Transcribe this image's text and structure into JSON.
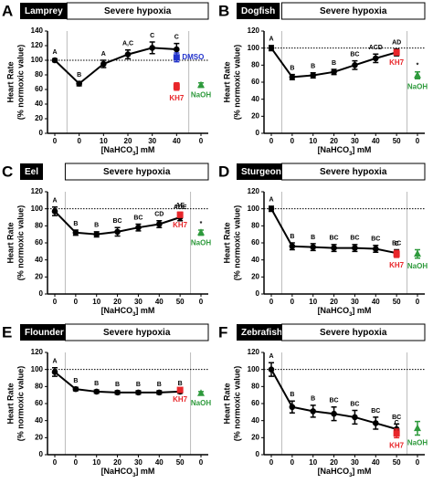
{
  "chart_data": [
    {
      "type": "line",
      "panel": "A",
      "title": "Lamprey",
      "header": "Severe hypoxia",
      "y_label": [
        "Heart Rate",
        "(% normoxic value)"
      ],
      "x_label": [
        "[NaHCO",
        "3",
        "] mM"
      ],
      "categories": [
        "0",
        "0",
        "10",
        "20",
        "30",
        "40",
        "0"
      ],
      "ylim": [
        0,
        140
      ],
      "yticks": [
        0,
        20,
        40,
        60,
        80,
        100,
        120,
        140
      ],
      "ref_line": 100,
      "series": [
        {
          "name": null,
          "color": "#000000",
          "marker": "circle",
          "values": [
            100,
            68,
            95,
            108,
            117,
            115,
            null
          ],
          "errors": [
            2,
            3,
            5,
            6,
            8,
            8,
            null
          ],
          "letters": [
            "A",
            "B",
            "A",
            "A,C",
            "C",
            "C",
            null
          ]
        },
        {
          "name": "KH7",
          "color": "#e8262a",
          "marker": "square",
          "values": [
            null,
            null,
            null,
            null,
            null,
            64,
            null
          ],
          "errors": [
            null,
            null,
            null,
            null,
            null,
            5,
            null
          ]
        },
        {
          "name": "NaOH",
          "color": "#2e9a3c",
          "marker": "triangle",
          "values": [
            null,
            null,
            null,
            null,
            null,
            null,
            66
          ],
          "errors": [
            null,
            null,
            null,
            null,
            null,
            null,
            3
          ]
        },
        {
          "name": "DMSO",
          "color": "#2233cc",
          "marker": "square",
          "values": [
            null,
            null,
            null,
            null,
            null,
            104,
            null
          ],
          "errors": [
            null,
            null,
            null,
            null,
            null,
            6,
            null
          ]
        }
      ]
    },
    {
      "type": "line",
      "panel": "B",
      "title": "Dogfish",
      "header": "Severe hypoxia",
      "y_label": [
        "Heart Rate",
        "(% normoxic value)"
      ],
      "x_label": [
        "[NaHCO",
        "3",
        "] mM"
      ],
      "categories": [
        "0",
        "0",
        "10",
        "20",
        "30",
        "40",
        "50",
        "0"
      ],
      "ylim": [
        0,
        120
      ],
      "yticks": [
        0,
        20,
        40,
        60,
        80,
        100,
        120
      ],
      "ref_line": 100,
      "series": [
        {
          "name": null,
          "color": "#000000",
          "marker": "circle",
          "values": [
            100,
            66,
            68,
            72,
            80,
            88,
            95,
            null
          ],
          "errors": [
            3,
            3,
            3,
            3,
            5,
            5,
            4,
            null
          ],
          "letters": [
            "A",
            "B",
            "B",
            "B",
            "BC",
            "ACD",
            "AD",
            null
          ]
        },
        {
          "name": "KH7",
          "color": "#e8262a",
          "marker": "square",
          "values": [
            null,
            null,
            null,
            null,
            null,
            null,
            95,
            null
          ],
          "errors": [
            null,
            null,
            null,
            null,
            null,
            null,
            3,
            null
          ]
        },
        {
          "name": "NaOH",
          "color": "#2e9a3c",
          "marker": "triangle",
          "values": [
            null,
            null,
            null,
            null,
            null,
            null,
            null,
            68
          ],
          "errors": [
            null,
            null,
            null,
            null,
            null,
            null,
            null,
            4
          ],
          "letters": [
            null,
            null,
            null,
            null,
            null,
            null,
            null,
            "*"
          ]
        }
      ]
    },
    {
      "type": "line",
      "panel": "C",
      "title": "Eel",
      "header": "Severe hypoxia",
      "y_label": [
        "Heart Rate",
        "(% normoxic value)"
      ],
      "x_label": [
        "[NaHCO",
        "3",
        "] mM"
      ],
      "categories": [
        "0",
        "0",
        "10",
        "20",
        "30",
        "40",
        "50",
        "0"
      ],
      "ylim": [
        0,
        120
      ],
      "yticks": [
        0,
        20,
        40,
        60,
        80,
        100,
        120
      ],
      "ref_line": 100,
      "series": [
        {
          "name": null,
          "color": "#000000",
          "marker": "circle",
          "values": [
            97,
            72,
            70,
            73,
            78,
            82,
            90,
            null
          ],
          "errors": [
            5,
            3,
            3,
            5,
            4,
            4,
            4,
            null
          ],
          "letters": [
            "A",
            "B",
            "B",
            "BC",
            "BC",
            "CD",
            "ADE",
            null
          ]
        },
        {
          "name": "KH7",
          "color": "#e8262a",
          "marker": "square",
          "values": [
            null,
            null,
            null,
            null,
            null,
            null,
            93,
            null
          ],
          "errors": [
            null,
            null,
            null,
            null,
            null,
            null,
            3,
            null
          ],
          "letters": [
            null,
            null,
            null,
            null,
            null,
            null,
            "AE",
            null
          ]
        },
        {
          "name": "NaOH",
          "color": "#2e9a3c",
          "marker": "triangle",
          "values": [
            null,
            null,
            null,
            null,
            null,
            null,
            null,
            72
          ],
          "errors": [
            null,
            null,
            null,
            null,
            null,
            null,
            null,
            3
          ],
          "letters": [
            null,
            null,
            null,
            null,
            null,
            null,
            null,
            "*"
          ]
        }
      ]
    },
    {
      "type": "line",
      "panel": "D",
      "title": "Sturgeon",
      "header": "Severe hypoxia",
      "y_label": [
        "Heart Rate",
        "(% normoxic value)"
      ],
      "x_label": [
        "[NaHCO",
        "3",
        "] mM"
      ],
      "categories": [
        "0",
        "0",
        "10",
        "20",
        "30",
        "40",
        "50",
        "0"
      ],
      "ylim": [
        0,
        120
      ],
      "yticks": [
        0,
        20,
        40,
        60,
        80,
        100,
        120
      ],
      "ref_line": 100,
      "series": [
        {
          "name": null,
          "color": "#000000",
          "marker": "circle",
          "values": [
            100,
            56,
            55,
            54,
            54,
            53,
            48,
            null
          ],
          "errors": [
            3,
            4,
            4,
            4,
            4,
            4,
            4,
            null
          ],
          "letters": [
            "A",
            "B",
            "B",
            "BC",
            "BC",
            "BC",
            "BC",
            null
          ]
        },
        {
          "name": "KH7",
          "color": "#e8262a",
          "marker": "square",
          "values": [
            null,
            null,
            null,
            null,
            null,
            null,
            47,
            null
          ],
          "errors": [
            null,
            null,
            null,
            null,
            null,
            null,
            4,
            null
          ],
          "letters": [
            null,
            null,
            null,
            null,
            null,
            null,
            "C",
            null
          ]
        },
        {
          "name": "NaOH",
          "color": "#2e9a3c",
          "marker": "triangle",
          "values": [
            null,
            null,
            null,
            null,
            null,
            null,
            null,
            47
          ],
          "errors": [
            null,
            null,
            null,
            null,
            null,
            null,
            null,
            5
          ]
        }
      ]
    },
    {
      "type": "line",
      "panel": "E",
      "title": "Flounder",
      "header": "Severe hypoxia",
      "y_label": [
        "Heart Rate",
        "(% normoxic value)"
      ],
      "x_label": [
        "[NaHCO",
        "3",
        "] mM"
      ],
      "categories": [
        "0",
        "0",
        "10",
        "20",
        "30",
        "40",
        "50",
        "0"
      ],
      "ylim": [
        0,
        120
      ],
      "yticks": [
        0,
        20,
        40,
        60,
        80,
        100,
        120
      ],
      "ref_line": 100,
      "series": [
        {
          "name": null,
          "color": "#000000",
          "marker": "circle",
          "values": [
            97,
            77,
            74,
            73,
            73,
            73,
            74,
            null
          ],
          "errors": [
            5,
            2,
            2,
            2,
            2,
            2,
            2,
            null
          ],
          "letters": [
            "A",
            "B",
            "B",
            "B",
            "B",
            "B",
            "B",
            null
          ]
        },
        {
          "name": "KH7",
          "color": "#e8262a",
          "marker": "square",
          "values": [
            null,
            null,
            null,
            null,
            null,
            null,
            76,
            null
          ],
          "errors": [
            null,
            null,
            null,
            null,
            null,
            null,
            2,
            null
          ]
        },
        {
          "name": "NaOH",
          "color": "#2e9a3c",
          "marker": "triangle",
          "values": [
            null,
            null,
            null,
            null,
            null,
            null,
            null,
            72
          ],
          "errors": [
            null,
            null,
            null,
            null,
            null,
            null,
            null,
            2
          ]
        }
      ]
    },
    {
      "type": "line",
      "panel": "F",
      "title": "Zebrafish",
      "header": "Severe hypoxia",
      "y_label": [
        "Heart Rate",
        "(% normoxic value)"
      ],
      "x_label": [
        "[NaHCO",
        "3",
        "] mM"
      ],
      "categories": [
        "0",
        "0",
        "10",
        "20",
        "30",
        "40",
        "50",
        "0"
      ],
      "ylim": [
        0,
        120
      ],
      "yticks": [
        0,
        20,
        40,
        60,
        80,
        100,
        120
      ],
      "ref_line": 100,
      "series": [
        {
          "name": null,
          "color": "#000000",
          "marker": "circle",
          "values": [
            100,
            56,
            51,
            48,
            44,
            37,
            30,
            null
          ],
          "errors": [
            8,
            7,
            7,
            8,
            8,
            7,
            6,
            null
          ],
          "letters": [
            "A",
            "B",
            "B",
            "BC",
            "BC",
            "BC",
            "BC",
            null
          ]
        },
        {
          "name": "KH7",
          "color": "#e8262a",
          "marker": "square",
          "values": [
            null,
            null,
            null,
            null,
            null,
            null,
            25,
            null
          ],
          "errors": [
            null,
            null,
            null,
            null,
            null,
            null,
            5,
            null
          ],
          "letters": [
            null,
            null,
            null,
            null,
            null,
            null,
            "C",
            null
          ]
        },
        {
          "name": "NaOH",
          "color": "#2e9a3c",
          "marker": "triangle",
          "values": [
            null,
            null,
            null,
            null,
            null,
            null,
            null,
            31
          ],
          "errors": [
            null,
            null,
            null,
            null,
            null,
            null,
            null,
            8
          ]
        }
      ]
    }
  ]
}
